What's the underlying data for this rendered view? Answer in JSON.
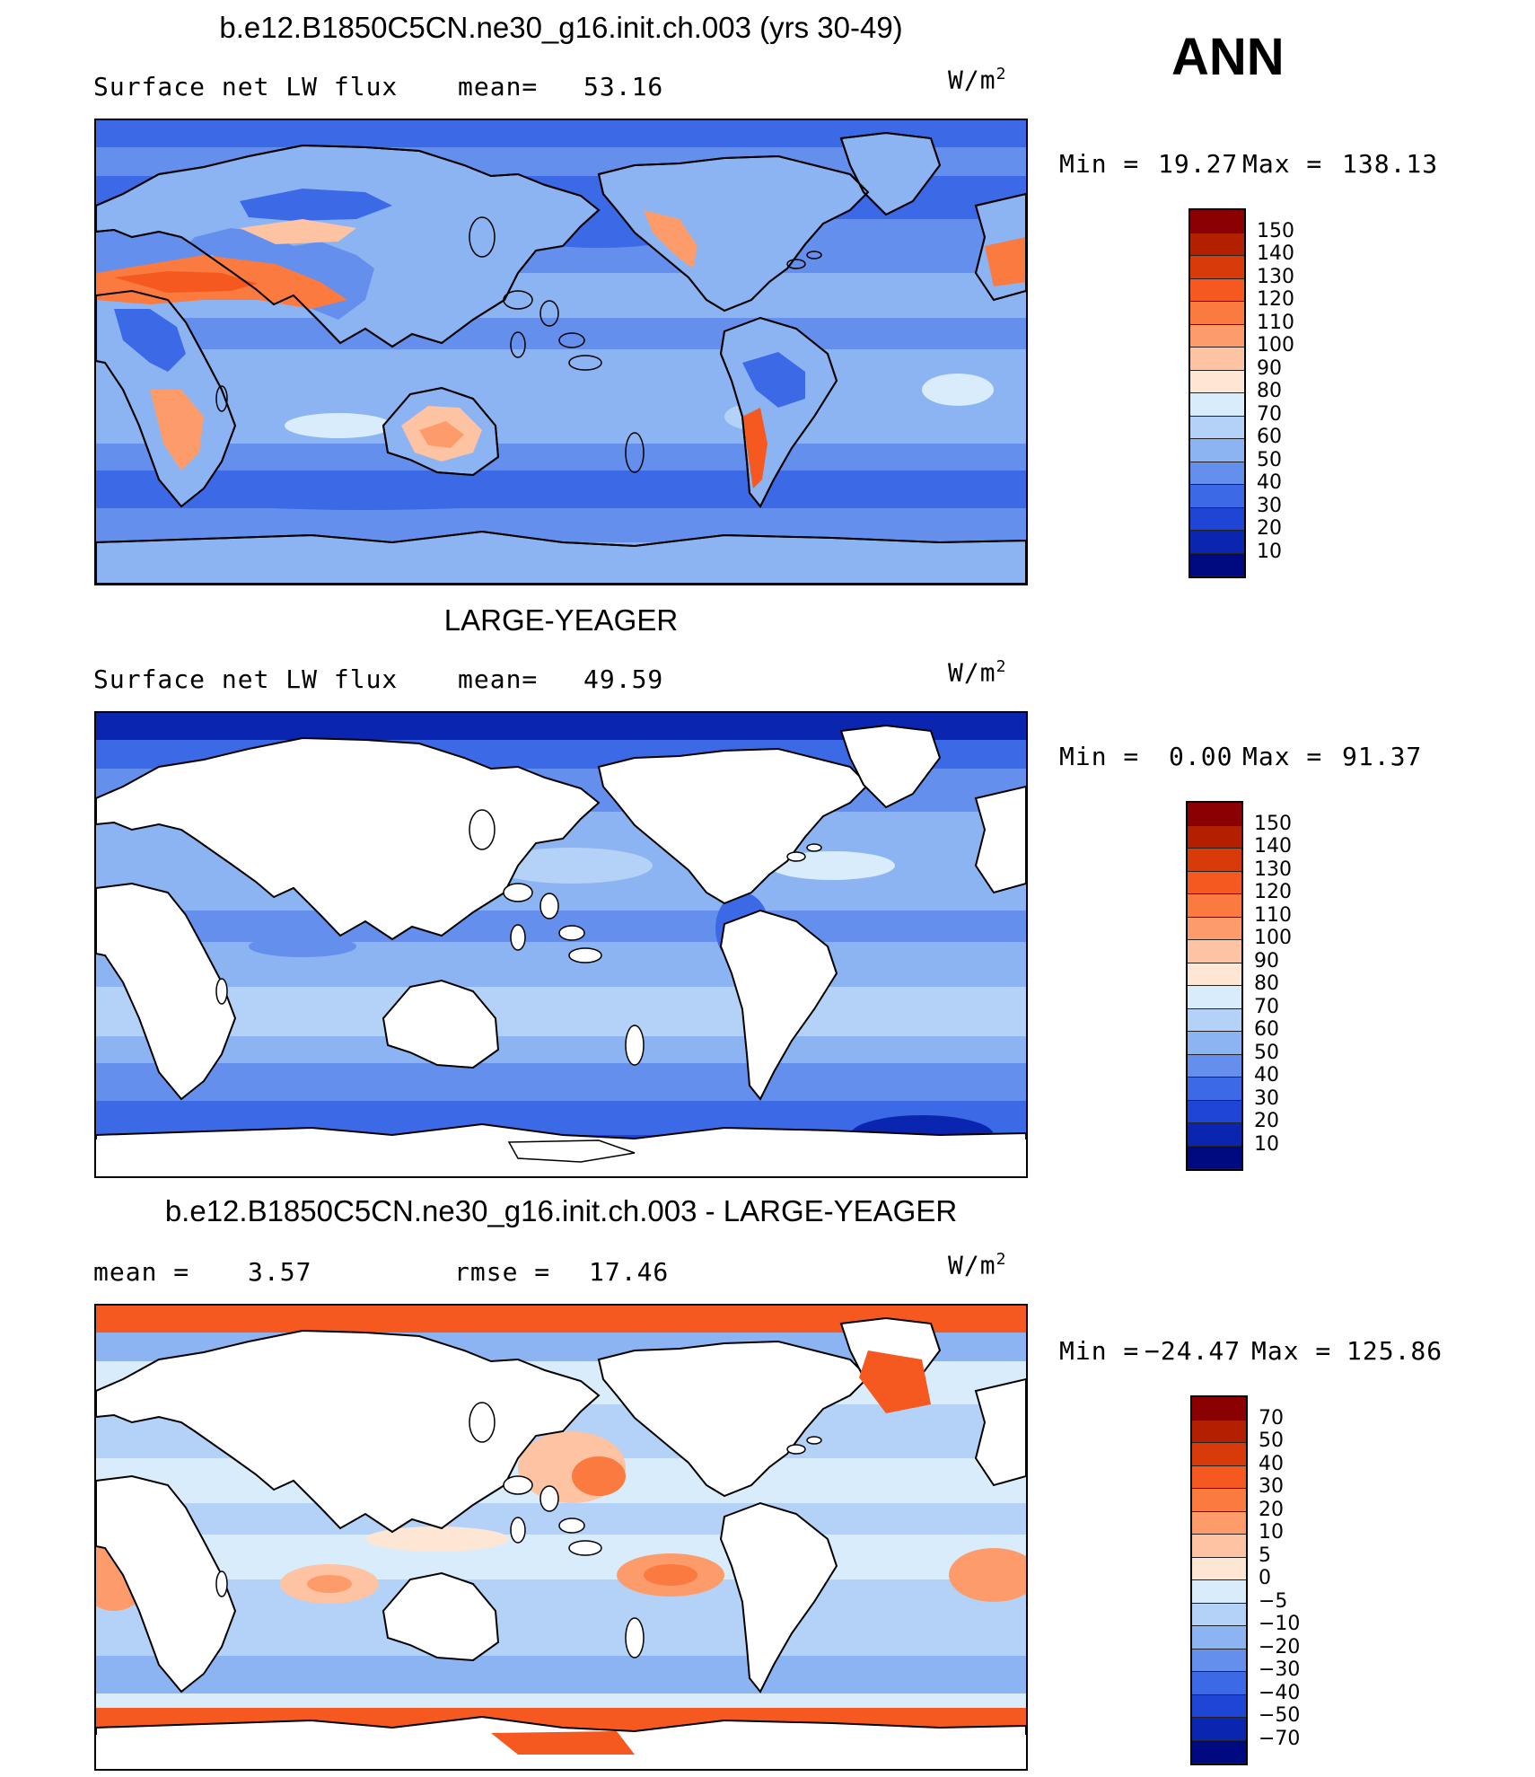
{
  "season": "ANN",
  "panels": [
    {
      "title": "b.e12.B1850C5CN.ne30_g16.init.ch.003 (yrs 30-49)",
      "left_label": "Surface net LW flux",
      "stat1_label": "mean=",
      "stat1_value": "53.16",
      "stat2_label": "",
      "stat2_value": "",
      "units": "W/m",
      "units_sup": "2",
      "min_label": "Min =",
      "min_value": "19.27",
      "max_label": "Max =",
      "max_value": "138.13",
      "colorbar_labels": [
        "150",
        "140",
        "130",
        "120",
        "110",
        "100",
        "90",
        "80",
        "70",
        "60",
        "50",
        "40",
        "30",
        "20",
        "10"
      ],
      "colorbar_colors": [
        "#8b0000",
        "#b22000",
        "#d93a0a",
        "#f5591f",
        "#fb7a40",
        "#fd9c6a",
        "#fdc3a2",
        "#fde6d3",
        "#d9ecfb",
        "#b4d2f8",
        "#8cb4f2",
        "#648fec",
        "#3c6ae6",
        "#1f45d6",
        "#0a26b0",
        "#000a80"
      ],
      "map_style": "full"
    },
    {
      "title": "LARGE-YEAGER",
      "left_label": "Surface net LW flux",
      "stat1_label": "mean=",
      "stat1_value": "49.59",
      "stat2_label": "",
      "stat2_value": "",
      "units": "W/m",
      "units_sup": "2",
      "min_label": "Min =",
      "min_value": "0.00",
      "max_label": "Max =",
      "max_value": "91.37",
      "colorbar_labels": [
        "150",
        "140",
        "130",
        "120",
        "110",
        "100",
        "90",
        "80",
        "70",
        "60",
        "50",
        "40",
        "30",
        "20",
        "10"
      ],
      "colorbar_colors": [
        "#8b0000",
        "#b22000",
        "#d93a0a",
        "#f5591f",
        "#fb7a40",
        "#fd9c6a",
        "#fdc3a2",
        "#fde6d3",
        "#d9ecfb",
        "#b4d2f8",
        "#8cb4f2",
        "#648fec",
        "#3c6ae6",
        "#1f45d6",
        "#0a26b0",
        "#000a80"
      ],
      "map_style": "ocean"
    },
    {
      "title": "b.e12.B1850C5CN.ne30_g16.init.ch.003 - LARGE-YEAGER",
      "left_label": "",
      "stat1_label": "mean =",
      "stat1_value": "3.57",
      "stat2_label": "rmse =",
      "stat2_value": "17.46",
      "units": "W/m",
      "units_sup": "2",
      "min_label": "Min =",
      "min_value": "−24.47",
      "max_label": "Max =",
      "max_value": "125.86",
      "colorbar_labels": [
        "70",
        "50",
        "40",
        "30",
        "20",
        "10",
        "5",
        "0",
        "−5",
        "−10",
        "−20",
        "−30",
        "−40",
        "−50",
        "−70"
      ],
      "colorbar_colors": [
        "#8b0000",
        "#b22000",
        "#d93a0a",
        "#f5591f",
        "#fb7a40",
        "#fd9c6a",
        "#fdc3a2",
        "#fde6d3",
        "#d9ecfb",
        "#b4d2f8",
        "#8cb4f2",
        "#648fec",
        "#3c6ae6",
        "#1f45d6",
        "#0a26b0",
        "#000a80"
      ],
      "map_style": "diff"
    }
  ]
}
